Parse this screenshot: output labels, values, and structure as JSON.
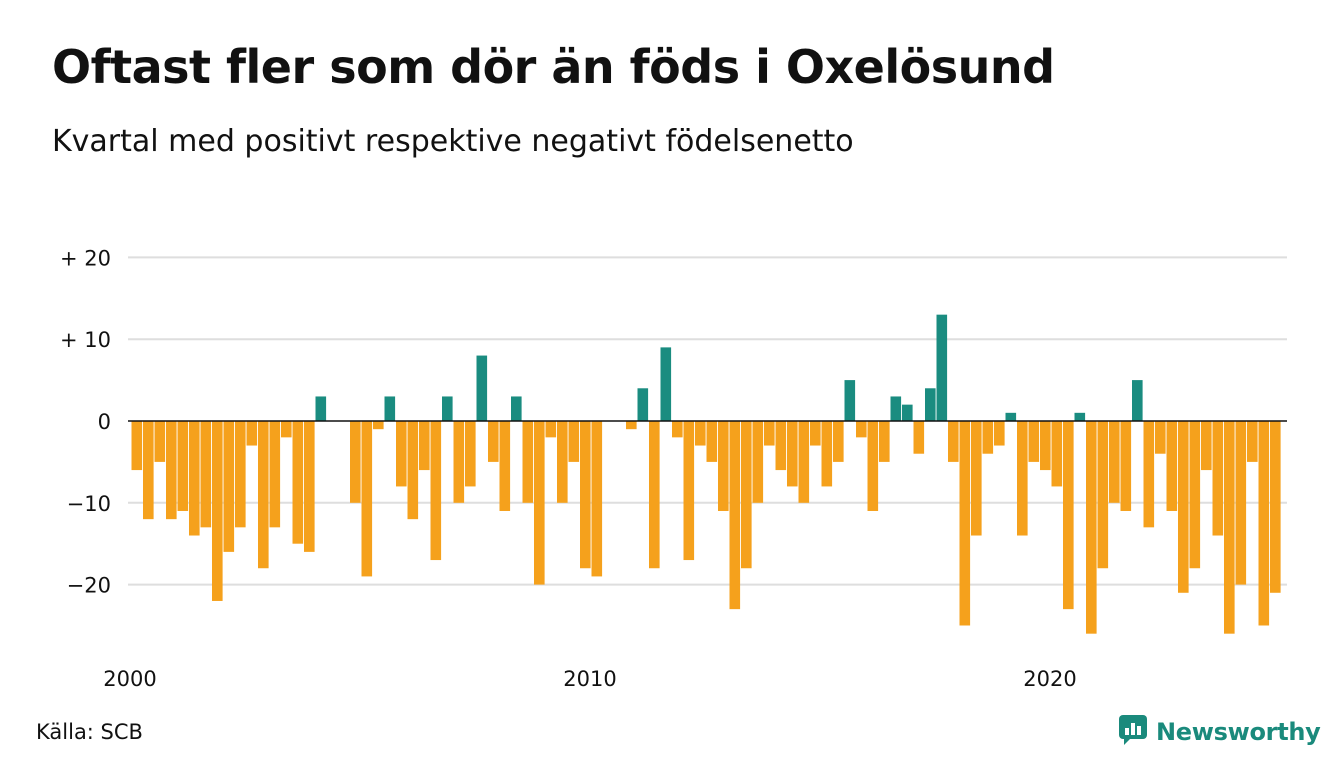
{
  "title": "Oftast fler som dör än föds i Oxelösund",
  "subtitle": "Kvartal med positivt respektive negativt födelsenetto",
  "source": "Källa: SCB",
  "brand": {
    "name": "Newsworthy",
    "icon": "newsworthy-logo-icon",
    "color": "#1a8a7c"
  },
  "chart_data": {
    "type": "bar",
    "title": "Oftast fler som dör än föds i Oxelösund",
    "subtitle": "Kvartal med positivt respektive negativt födelsenetto",
    "xlabel": "",
    "ylabel": "",
    "ylim": [
      -28,
      21
    ],
    "y_ticks": [
      {
        "value": 20,
        "label": "+ 20"
      },
      {
        "value": 10,
        "label": "+ 10"
      },
      {
        "value": 0,
        "label": "0"
      },
      {
        "value": -10,
        "label": "−10"
      },
      {
        "value": -20,
        "label": "−20"
      }
    ],
    "x_ticks": [
      {
        "year": 2000,
        "label": "2000"
      },
      {
        "year": 2010,
        "label": "2010"
      },
      {
        "year": 2020,
        "label": "2020"
      }
    ],
    "start_year": 2000,
    "frequency": "quarterly",
    "values": [
      -6,
      -12,
      -5,
      -12,
      -11,
      -14,
      -13,
      -22,
      -16,
      -13,
      -3,
      -18,
      -13,
      -2,
      -15,
      -16,
      3,
      0,
      0,
      -10,
      -19,
      -1,
      3,
      -8,
      -12,
      -6,
      -17,
      3,
      -10,
      -8,
      8,
      -5,
      -11,
      3,
      -10,
      -20,
      -2,
      -10,
      -5,
      -18,
      -19,
      0,
      0,
      -1,
      4,
      -18,
      9,
      -2,
      -17,
      -3,
      -5,
      -11,
      -23,
      -18,
      -10,
      -3,
      -6,
      -8,
      -10,
      -3,
      -8,
      -5,
      5,
      -2,
      -11,
      -5,
      3,
      2,
      -4,
      4,
      13,
      -5,
      -25,
      -14,
      -4,
      -3,
      1,
      -14,
      -5,
      -6,
      -8,
      -23,
      1,
      -26,
      -18,
      -10,
      -11,
      5,
      -13,
      -4,
      -11,
      -21,
      -18,
      -6,
      -14,
      -26,
      -20,
      -5,
      -25,
      -21
    ],
    "colors": {
      "positive": "#1a8c80",
      "negative": "#f5a11c"
    },
    "grid": true,
    "legend": "none"
  }
}
